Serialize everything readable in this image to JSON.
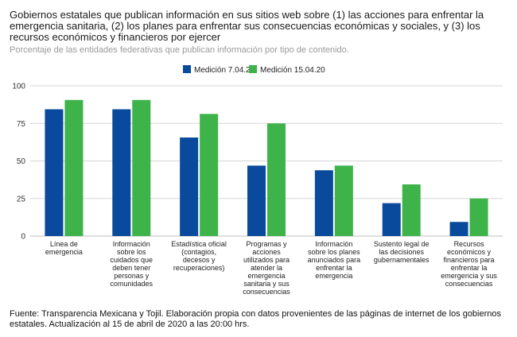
{
  "chart_data": {
    "type": "bar",
    "title": "Gobiernos estatales que publican información en sus sitios web sobre (1) las acciones para enfrentar la emergencia sanitaria, (2) los planes para enfrentar sus consecuencias económicas y sociales, y (3) los recursos económicos y financieros por ejercer",
    "subtitle": "Porcentaje de las entidades federativas que publican información por tipo de contenido.",
    "categories": [
      [
        "Línea de",
        "emergencia"
      ],
      [
        "Información",
        "sobre los",
        "cuidados que",
        "deben tener",
        "personas y",
        "comunidades"
      ],
      [
        "Estadística oficial",
        "(contagios,",
        "decesos y",
        "recuperaciones)"
      ],
      [
        "Programas y",
        "acciones",
        "utilizados para",
        "atender la",
        "emergencia",
        "sanitaria y sus",
        "consecuencias"
      ],
      [
        "Información",
        "sobre los planes",
        "anunciados para",
        "enfrentar la",
        "emergencia"
      ],
      [
        "Sustento legal de",
        "las decisiones",
        "gubernamentales"
      ],
      [
        "Recursos",
        "económicos y",
        "financieros para",
        "enfrentar la",
        "emergencia y sus",
        "consecuencias"
      ]
    ],
    "series": [
      {
        "name": "Medición 7.04.20",
        "color": "#0a4a9c",
        "values": [
          84.4,
          84.4,
          65.6,
          46.9,
          43.8,
          21.9,
          9.4
        ]
      },
      {
        "name": "Medición 15.04.20",
        "color": "#3db34a",
        "values": [
          90.6,
          90.6,
          81.3,
          75,
          46.9,
          34.4,
          25
        ]
      }
    ],
    "ylim": [
      0,
      100
    ],
    "yticks": [
      0,
      25,
      50,
      75,
      100
    ],
    "grid": true,
    "legend": "top-right"
  },
  "source": "Fuente: Transparencia Mexicana y Tojil. Elaboración propia con datos provenientes de las páginas de internet de los gobiernos estatales. Actualización al 15 de abril de 2020 a las 20:00 hrs."
}
